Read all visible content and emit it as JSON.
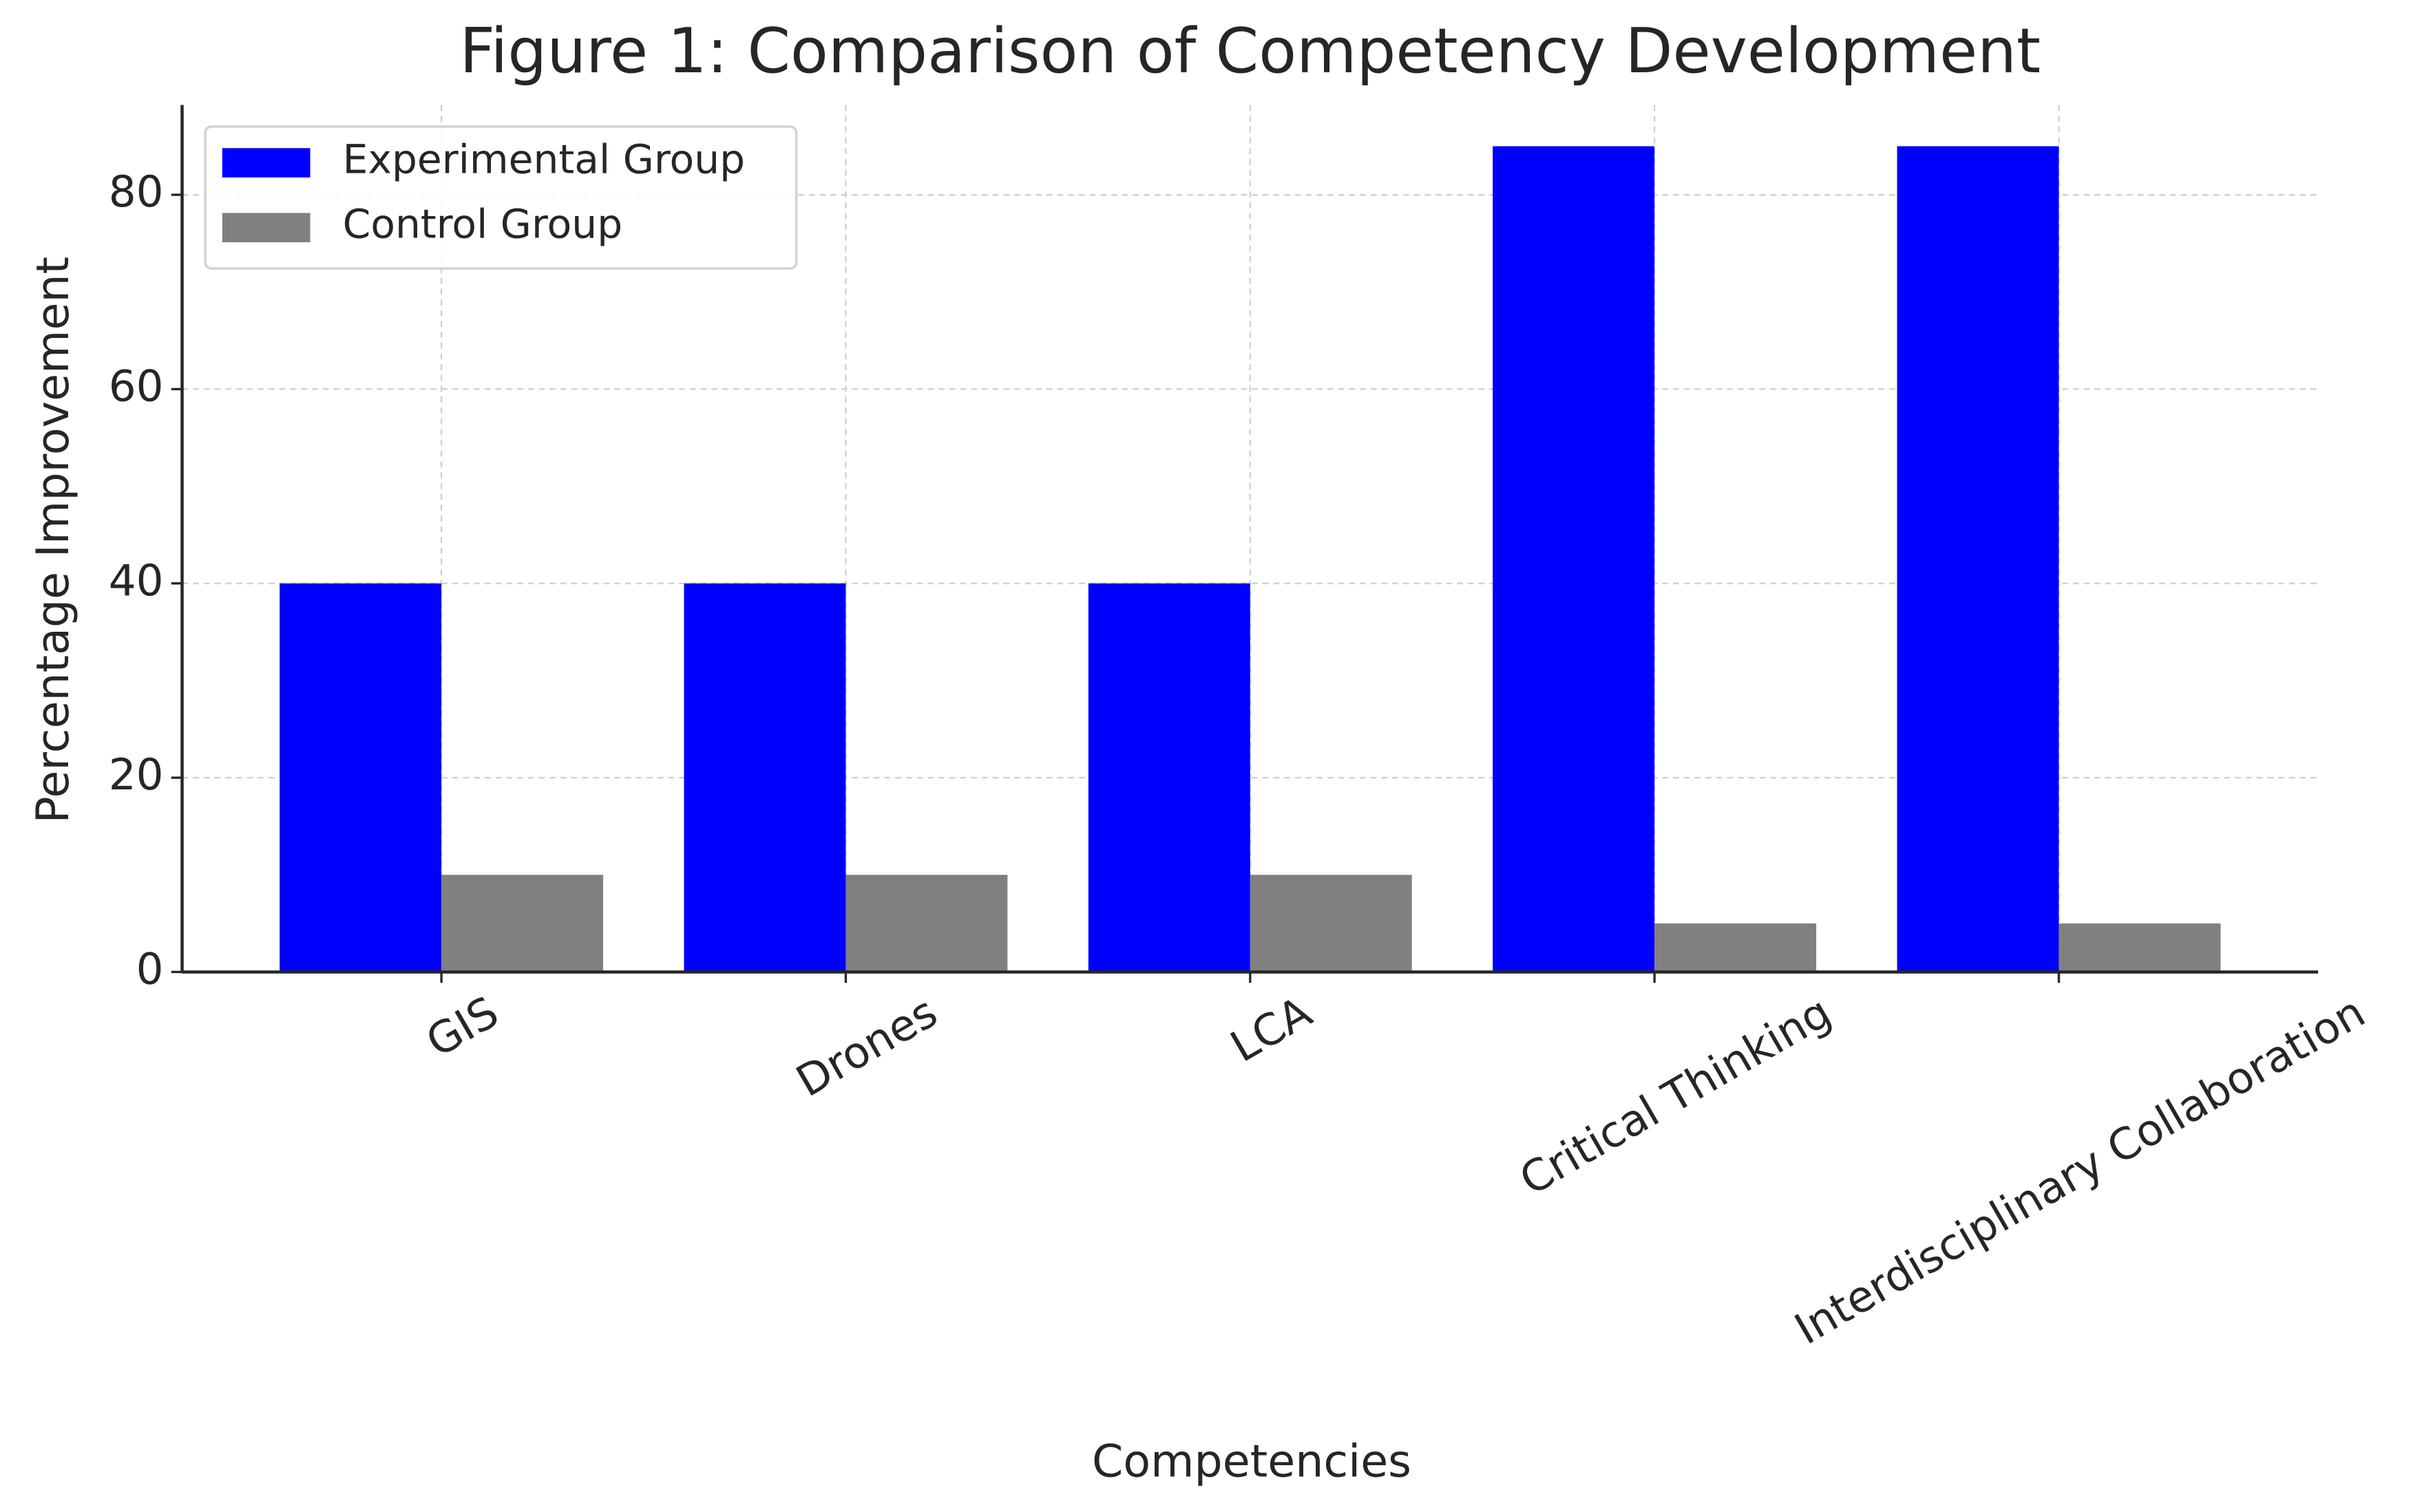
{
  "chart_data": {
    "type": "bar",
    "title": "Figure 1: Comparison of Competency Development",
    "x_label": "Competencies",
    "y_label": "Percentage Improvement",
    "categories": [
      "GIS",
      "Drones",
      "LCA",
      "Critical Thinking",
      "Interdisciplinary Collaboration"
    ],
    "series": [
      {
        "name": "Experimental Group",
        "color": "#0000ff",
        "values": [
          40,
          40,
          40,
          85,
          85
        ]
      },
      {
        "name": "Control Group",
        "color": "#808080",
        "values": [
          10,
          10,
          10,
          5,
          5
        ]
      }
    ],
    "ylim": [
      0,
      89.25
    ],
    "yticks": [
      0,
      20,
      40,
      60,
      80
    ],
    "grid": true,
    "legend": "upper left"
  }
}
